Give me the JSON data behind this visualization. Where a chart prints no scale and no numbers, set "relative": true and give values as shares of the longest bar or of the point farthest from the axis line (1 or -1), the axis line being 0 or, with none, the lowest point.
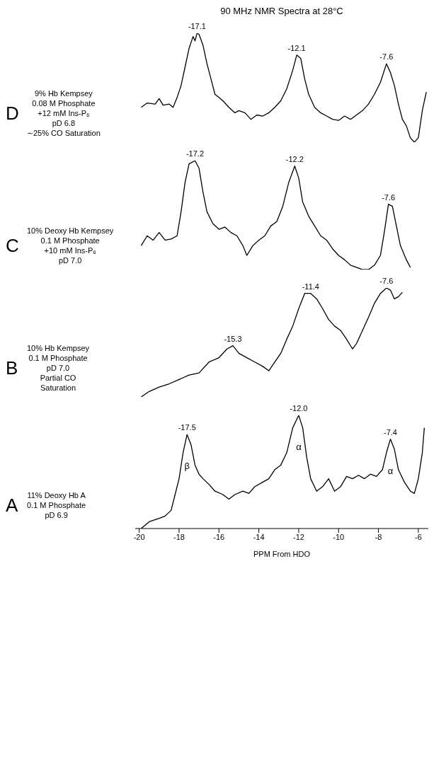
{
  "chart_data": [
    {
      "type": "line",
      "title": "90 MHz NMR Spectra at 28°C",
      "relative": true,
      "color": "#000000",
      "xticks": [
        -20,
        -18,
        -16,
        -14,
        -12,
        -10,
        -8,
        -6
      ],
      "tick_labels": false,
      "x": [
        -19.9,
        -19.6,
        -19.2,
        -19.0,
        -18.8,
        -18.5,
        -18.3,
        -18.1,
        -17.9,
        -17.7,
        -17.5,
        -17.3,
        -17.2,
        -17.1,
        -17.0,
        -16.8,
        -16.6,
        -16.4,
        -16.2,
        -16.0,
        -15.8,
        -15.5,
        -15.2,
        -15.0,
        -14.7,
        -14.4,
        -14.1,
        -13.8,
        -13.5,
        -13.2,
        -12.9,
        -12.6,
        -12.3,
        -12.1,
        -11.9,
        -11.7,
        -11.5,
        -11.2,
        -10.9,
        -10.6,
        -10.3,
        -10.0,
        -9.7,
        -9.4,
        -9.1,
        -8.8,
        -8.5,
        -8.2,
        -7.9,
        -7.6,
        -7.4,
        -7.2,
        -7.0,
        -6.8,
        -6.6,
        -6.4,
        -6.2,
        -6.0,
        -5.8,
        -5.6
      ],
      "values": [
        0.32,
        0.36,
        0.35,
        0.4,
        0.34,
        0.35,
        0.32,
        0.41,
        0.52,
        0.69,
        0.86,
        0.97,
        0.93,
        1,
        0.99,
        0.89,
        0.72,
        0.58,
        0.44,
        0.41,
        0.38,
        0.32,
        0.27,
        0.29,
        0.27,
        0.21,
        0.25,
        0.24,
        0.27,
        0.32,
        0.38,
        0.49,
        0.66,
        0.8,
        0.77,
        0.58,
        0.44,
        0.32,
        0.27,
        0.24,
        0.21,
        0.2,
        0.24,
        0.21,
        0.25,
        0.29,
        0.35,
        0.44,
        0.55,
        0.72,
        0.64,
        0.52,
        0.35,
        0.21,
        0.15,
        0.04,
        0,
        0.04,
        0.29,
        0.46
      ],
      "annotations": [
        "D",
        "9% Hb Kempsey\n0.08 M Phosphate\n+12 mM Ins-P₆\npD 6.8\n∼25% CO Saturation",
        {
          "text": "-17.1",
          "x": -17.1,
          "y": 1
        },
        {
          "text": "-12.1",
          "x": -12.1,
          "y": 0.8
        },
        {
          "text": "-7.6",
          "x": -7.6,
          "y": 0.72
        }
      ]
    },
    {
      "type": "line",
      "relative": true,
      "color": "#000000",
      "xticks": [
        -20,
        -18,
        -16,
        -14,
        -12,
        -10,
        -8,
        -6
      ],
      "tick_labels": false,
      "x": [
        -19.9,
        -19.6,
        -19.3,
        -19.0,
        -18.7,
        -18.4,
        -18.1,
        -17.9,
        -17.7,
        -17.5,
        -17.2,
        -17.0,
        -16.8,
        -16.6,
        -16.3,
        -16.0,
        -15.7,
        -15.4,
        -15.1,
        -14.8,
        -14.6,
        -14.3,
        -14.0,
        -13.7,
        -13.4,
        -13.1,
        -12.8,
        -12.5,
        -12.2,
        -12.0,
        -11.8,
        -11.5,
        -11.2,
        -10.9,
        -10.6,
        -10.3,
        -10.0,
        -9.7,
        -9.4,
        -9.1,
        -8.8,
        -8.5,
        -8.2,
        -7.9,
        -7.7,
        -7.5,
        -7.3,
        -7.1,
        -6.9,
        -6.6,
        -6.4
      ],
      "values": [
        0.22,
        0.31,
        0.27,
        0.34,
        0.27,
        0.28,
        0.31,
        0.53,
        0.8,
        0.97,
        1,
        0.93,
        0.71,
        0.53,
        0.42,
        0.37,
        0.39,
        0.34,
        0.31,
        0.22,
        0.13,
        0.22,
        0.27,
        0.31,
        0.4,
        0.44,
        0.58,
        0.8,
        0.95,
        0.84,
        0.62,
        0.49,
        0.4,
        0.31,
        0.27,
        0.19,
        0.13,
        0.09,
        0.04,
        0.02,
        0,
        0,
        0.04,
        0.13,
        0.35,
        0.6,
        0.58,
        0.4,
        0.22,
        0.09,
        0.02
      ],
      "annotations": [
        "C",
        "10% Deoxy Hb Kempsey\n0.1 M Phosphate\n+10 mM Ins-P₆\npD 7.0",
        {
          "text": "-17.2",
          "x": -17.2,
          "y": 1
        },
        {
          "text": "-12.2",
          "x": -12.2,
          "y": 0.95
        },
        {
          "text": "-7.6",
          "x": -7.5,
          "y": 0.6
        }
      ]
    },
    {
      "type": "line",
      "relative": true,
      "color": "#000000",
      "xticks": [
        -20,
        -18,
        -16,
        -14,
        -12,
        -10,
        -8,
        -6
      ],
      "tick_labels": false,
      "x": [
        -19.9,
        -19.5,
        -19.0,
        -18.5,
        -18.0,
        -17.5,
        -17.0,
        -16.5,
        -16.0,
        -15.6,
        -15.3,
        -15.0,
        -14.6,
        -14.2,
        -13.8,
        -13.5,
        -13.2,
        -12.9,
        -12.6,
        -12.3,
        -12.0,
        -11.7,
        -11.4,
        -11.1,
        -10.8,
        -10.5,
        -10.2,
        -9.9,
        -9.6,
        -9.3,
        -9.1,
        -8.8,
        -8.5,
        -8.2,
        -7.9,
        -7.6,
        -7.4,
        -7.2,
        -7.0,
        -6.8
      ],
      "values": [
        0,
        0.05,
        0.09,
        0.12,
        0.16,
        0.2,
        0.22,
        0.32,
        0.36,
        0.44,
        0.47,
        0.4,
        0.36,
        0.32,
        0.28,
        0.24,
        0.32,
        0.4,
        0.53,
        0.65,
        0.81,
        0.95,
        0.95,
        0.9,
        0.81,
        0.71,
        0.65,
        0.61,
        0.53,
        0.44,
        0.49,
        0.61,
        0.73,
        0.86,
        0.95,
        1,
        0.98,
        0.9,
        0.92,
        0.96
      ],
      "annotations": [
        "B",
        "10% Hb Kempsey\n0.1 M Phosphate\npD 7.0\nPartial CO\nSaturation",
        {
          "text": "-15.3",
          "x": -15.3,
          "y": 0.47
        },
        {
          "text": "-11.4",
          "x": -11.4,
          "y": 0.95
        },
        {
          "text": "-7.6",
          "x": -7.6,
          "y": 1
        }
      ]
    },
    {
      "type": "line",
      "relative": true,
      "color": "#000000",
      "xlim": [
        -20.2,
        -5.5
      ],
      "tick_labels": "x",
      "xlabel": "PPM From HDO",
      "xticks": [
        -20,
        -18,
        -16,
        -14,
        -12,
        -10,
        -8,
        -6
      ],
      "x": [
        -19.9,
        -19.5,
        -19.0,
        -18.7,
        -18.4,
        -18.2,
        -18.0,
        -17.8,
        -17.6,
        -17.4,
        -17.2,
        -17.0,
        -16.8,
        -16.5,
        -16.2,
        -15.8,
        -15.5,
        -15.2,
        -14.8,
        -14.5,
        -14.2,
        -13.8,
        -13.5,
        -13.2,
        -12.9,
        -12.6,
        -12.3,
        -12.0,
        -11.8,
        -11.6,
        -11.4,
        -11.1,
        -10.8,
        -10.5,
        -10.2,
        -9.9,
        -9.6,
        -9.3,
        -9.0,
        -8.7,
        -8.4,
        -8.1,
        -7.8,
        -7.6,
        -7.4,
        -7.2,
        -7.0,
        -6.7,
        -6.4,
        -6.2,
        -6.0,
        -5.8,
        -5.7
      ],
      "values": [
        0,
        0.06,
        0.09,
        0.11,
        0.16,
        0.3,
        0.44,
        0.67,
        0.83,
        0.74,
        0.56,
        0.48,
        0.44,
        0.39,
        0.33,
        0.3,
        0.26,
        0.3,
        0.33,
        0.31,
        0.37,
        0.41,
        0.44,
        0.52,
        0.56,
        0.67,
        0.89,
        1,
        0.89,
        0.63,
        0.44,
        0.33,
        0.37,
        0.44,
        0.33,
        0.37,
        0.46,
        0.44,
        0.47,
        0.44,
        0.48,
        0.46,
        0.52,
        0.67,
        0.79,
        0.7,
        0.52,
        0.41,
        0.33,
        0.31,
        0.44,
        0.67,
        0.89
      ],
      "annotations": [
        "A",
        "11% Deoxy Hb A\n0.1 M Phosphate\npD 6.9",
        {
          "text": "-17.5",
          "x": -17.6,
          "y": 0.83
        },
        {
          "text": "-12.0",
          "x": -12.0,
          "y": 1
        },
        {
          "text": "-7.4",
          "x": -7.4,
          "y": 0.79
        },
        "β",
        "α",
        "α"
      ]
    }
  ]
}
